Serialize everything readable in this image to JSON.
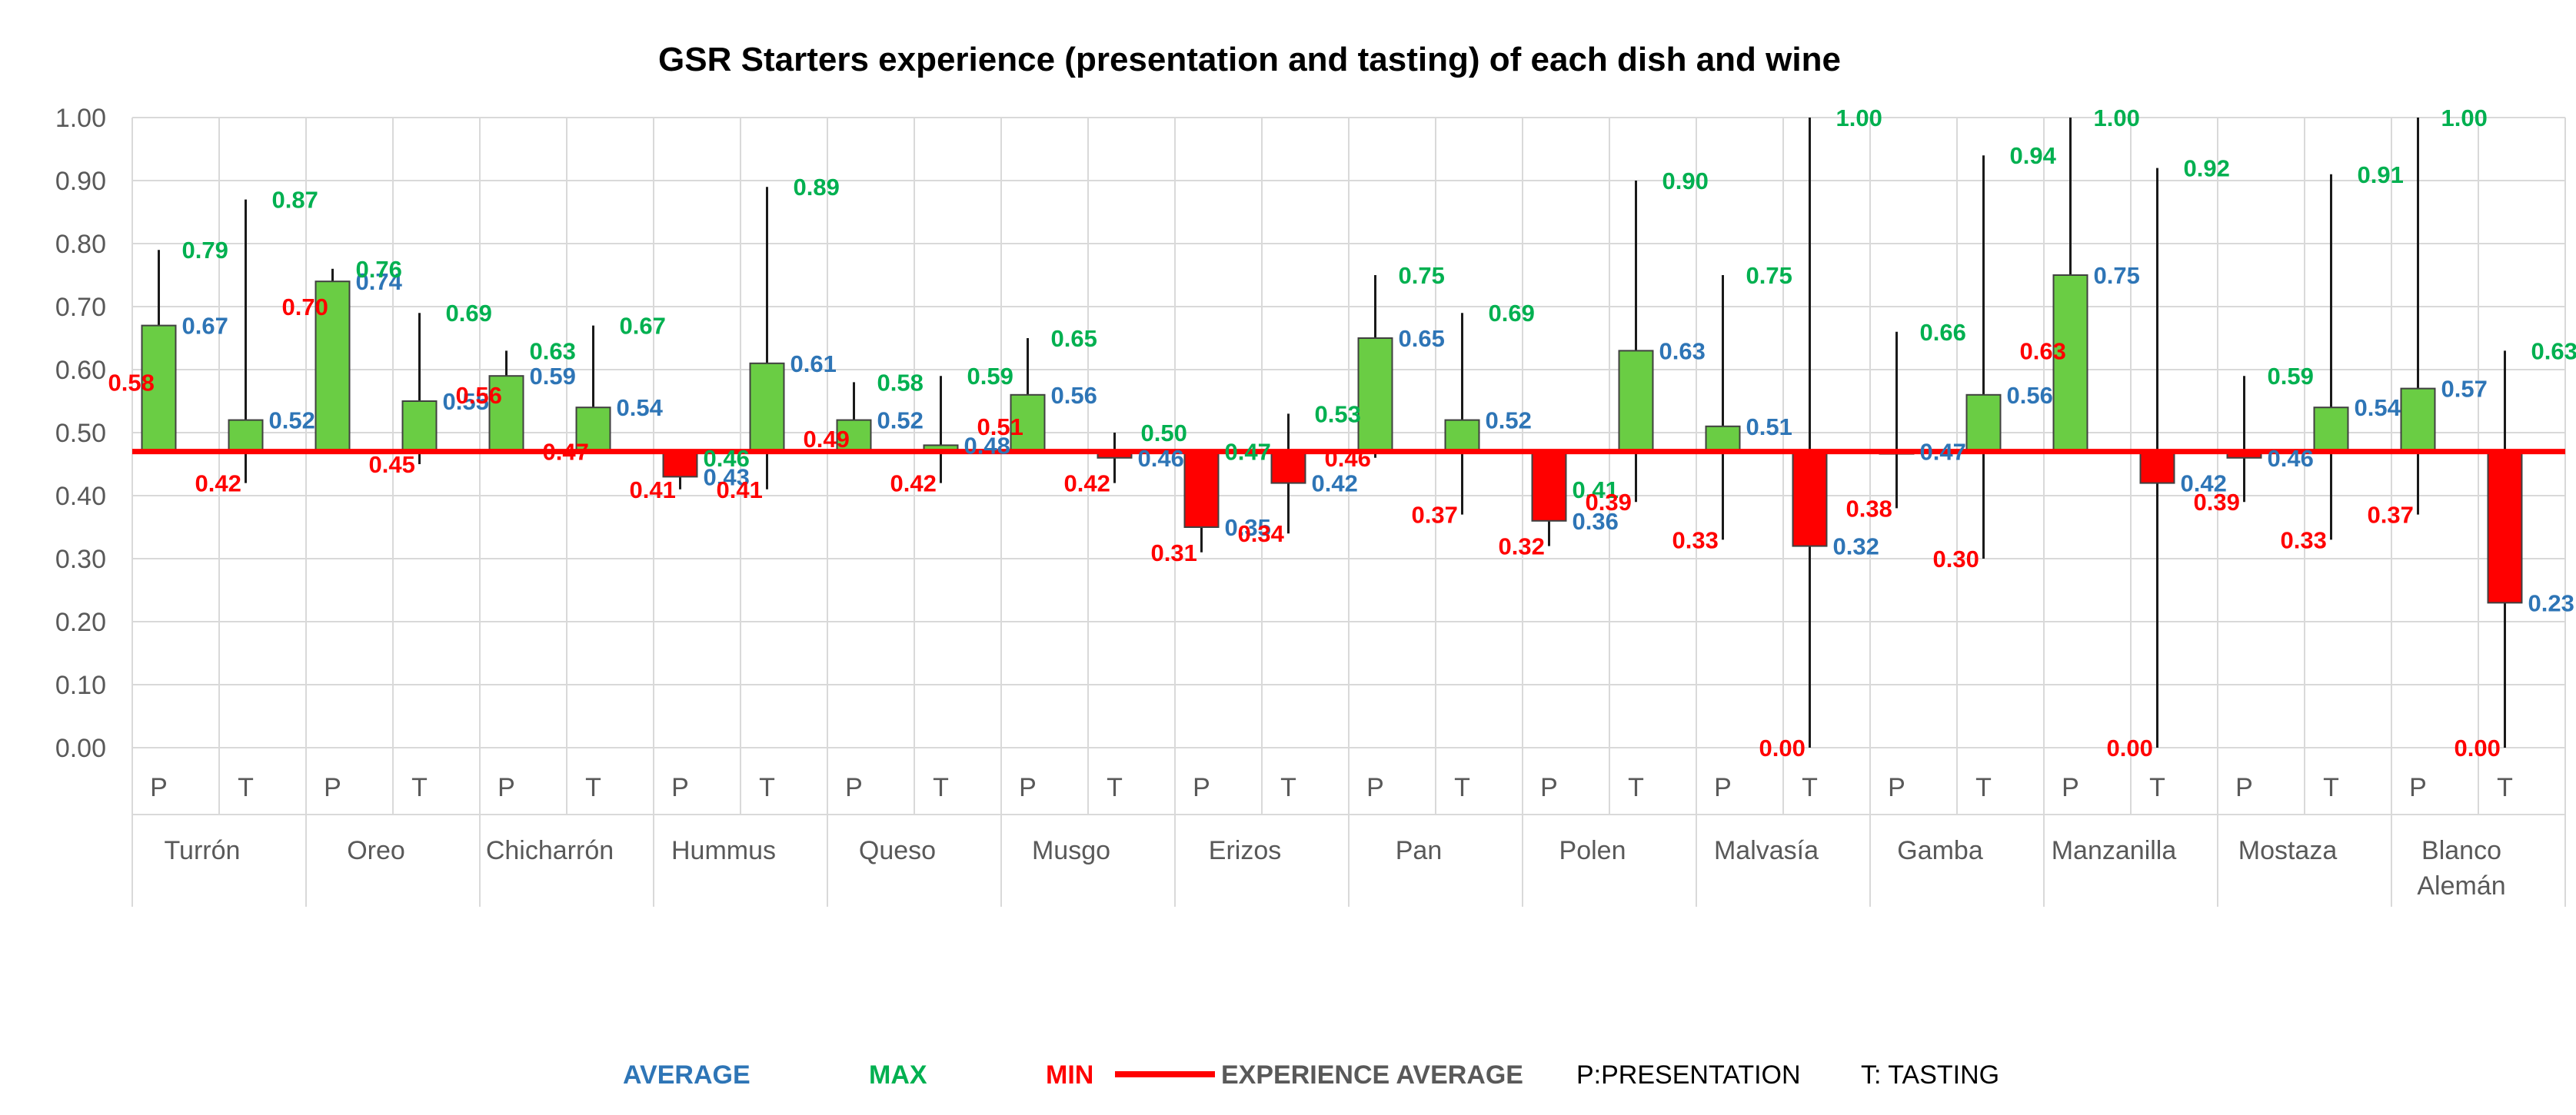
{
  "chart_data": {
    "type": "bar",
    "title": "GSR Starters experience (presentation and tasting) of each dish and wine",
    "ylim": [
      0,
      1
    ],
    "yticks": [
      "0.00",
      "0.10",
      "0.20",
      "0.30",
      "0.40",
      "0.50",
      "0.60",
      "0.70",
      "0.80",
      "0.90",
      "1.00"
    ],
    "baseline": 0.47,
    "subcategory_labels": [
      "P",
      "T"
    ],
    "groups": [
      {
        "name": "Turrón",
        "name_lines": [
          "Turrón"
        ],
        "P": {
          "avg": 0.67,
          "max": 0.79,
          "min": 0.58
        },
        "T": {
          "avg": 0.52,
          "max": 0.87,
          "min": 0.42
        }
      },
      {
        "name": "Oreo",
        "name_lines": [
          "Oreo"
        ],
        "P": {
          "avg": 0.74,
          "max": 0.76,
          "min": 0.7
        },
        "T": {
          "avg": 0.55,
          "max": 0.69,
          "min": 0.45
        }
      },
      {
        "name": "Chicharrón",
        "name_lines": [
          "Chicharrón"
        ],
        "P": {
          "avg": 0.59,
          "max": 0.63,
          "min": 0.56
        },
        "T": {
          "avg": 0.54,
          "max": 0.67,
          "min": 0.47
        }
      },
      {
        "name": "Hummus",
        "name_lines": [
          "Hummus"
        ],
        "P": {
          "avg": 0.43,
          "max": 0.46,
          "min": 0.41
        },
        "T": {
          "avg": 0.61,
          "max": 0.89,
          "min": 0.41
        }
      },
      {
        "name": "Queso",
        "name_lines": [
          "Queso"
        ],
        "P": {
          "avg": 0.52,
          "max": 0.58,
          "min": 0.49
        },
        "T": {
          "avg": 0.48,
          "max": 0.59,
          "min": 0.42
        }
      },
      {
        "name": "Musgo",
        "name_lines": [
          "Musgo"
        ],
        "P": {
          "avg": 0.56,
          "max": 0.65,
          "min": 0.51
        },
        "T": {
          "avg": 0.46,
          "max": 0.5,
          "min": 0.42
        }
      },
      {
        "name": "Erizos",
        "name_lines": [
          "Erizos"
        ],
        "P": {
          "avg": 0.35,
          "max": 0.47,
          "min": 0.31
        },
        "T": {
          "avg": 0.42,
          "max": 0.53,
          "min": 0.34
        }
      },
      {
        "name": "Pan",
        "name_lines": [
          "Pan"
        ],
        "P": {
          "avg": 0.65,
          "max": 0.75,
          "min": 0.46
        },
        "T": {
          "avg": 0.52,
          "max": 0.69,
          "min": 0.37
        }
      },
      {
        "name": "Polen",
        "name_lines": [
          "Polen"
        ],
        "P": {
          "avg": 0.36,
          "max": 0.41,
          "min": 0.32
        },
        "T": {
          "avg": 0.63,
          "max": 0.9,
          "min": 0.39
        }
      },
      {
        "name": "Malvasía",
        "name_lines": [
          "Malvasía"
        ],
        "P": {
          "avg": 0.51,
          "max": 0.75,
          "min": 0.33
        },
        "T": {
          "avg": 0.32,
          "max": 1.0,
          "min": 0.0
        }
      },
      {
        "name": "Gamba",
        "name_lines": [
          "Gamba"
        ],
        "P": {
          "avg": 0.47,
          "max": 0.66,
          "min": 0.38
        },
        "T": {
          "avg": 0.56,
          "max": 0.94,
          "min": 0.3
        }
      },
      {
        "name": "Manzanilla",
        "name_lines": [
          "Manzanilla"
        ],
        "P": {
          "avg": 0.75,
          "max": 1.0,
          "min": 0.63
        },
        "T": {
          "avg": 0.42,
          "max": 0.92,
          "min": 0.0
        }
      },
      {
        "name": "Mostaza",
        "name_lines": [
          "Mostaza"
        ],
        "P": {
          "avg": 0.46,
          "max": 0.59,
          "min": 0.39
        },
        "T": {
          "avg": 0.54,
          "max": 0.91,
          "min": 0.33
        }
      },
      {
        "name": "Blanco Alemán",
        "name_lines": [
          "Blanco",
          "Alemán"
        ],
        "P": {
          "avg": 0.57,
          "max": 1.0,
          "min": 0.37
        },
        "T": {
          "avg": 0.23,
          "max": 0.63,
          "min": 0.0
        }
      }
    ],
    "legend": {
      "average": "AVERAGE",
      "max": "MAX",
      "min": "MIN",
      "experience_average": "EXPERIENCE AVERAGE",
      "presentation": "P:PRESENTATION",
      "tasting": "T: TASTING"
    },
    "colors": {
      "average": "#2E75B6",
      "max": "#00B050",
      "min": "#FF0000",
      "up_bar": "#6ACD44",
      "down_bar": "#FF0000",
      "baseline": "#FF0000",
      "whisker": "#1A1A1A",
      "grid": "#D9D9D9"
    }
  }
}
